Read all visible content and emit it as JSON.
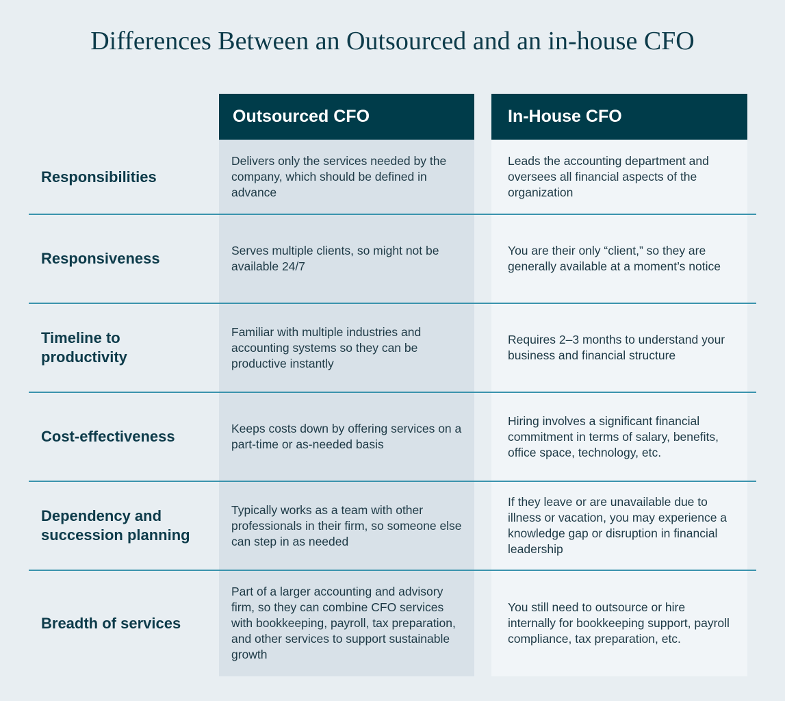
{
  "title": "Differences Between an Outsourced and an in-house CFO",
  "table": {
    "columns": [
      "Outsourced CFO",
      "In-House CFO"
    ],
    "rows": [
      [
        "Responsibilities",
        "Delivers only the services needed by the company, which should be defined in advance",
        "Leads the accounting department and oversees all financial aspects of the organization"
      ],
      [
        "Responsiveness",
        "Serves multiple clients, so might not be available 24/7",
        "You are their only “client,” so they are generally available at a moment’s notice"
      ],
      [
        "Timeline to productivity",
        "Familiar with multiple industries and accounting systems so they can be productive instantly",
        "Requires 2–3 months to understand your business and financial structure"
      ],
      [
        "Cost-effectiveness",
        "Keeps costs down by offering services on a part-time or as-needed basis",
        "Hiring involves a significant financial commitment in terms of salary, benefits, office space, technology, etc."
      ],
      [
        "Dependency and succession planning",
        "Typically works as a team with other professionals in their firm, so someone else can step in as needed",
        "If they leave or are unavailable due to illness or vacation, you may experience a knowledge gap or disruption in financial leadership"
      ],
      [
        "Breadth of services",
        "Part of a larger accounting and advisory firm, so they can combine CFO services with bookkeeping, payroll, tax preparation, and other services to support sustainable growth",
        "You still need to outsource or hire internally for bookkeeping support, payroll compliance, tax preparation, etc."
      ]
    ]
  }
}
